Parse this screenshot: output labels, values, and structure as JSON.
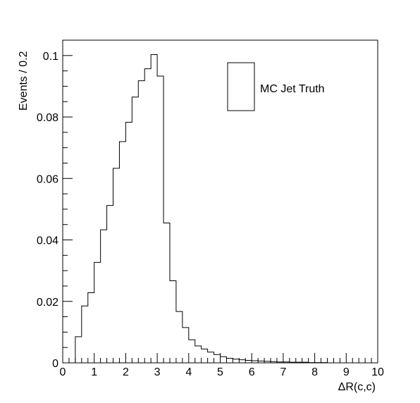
{
  "chart_data": {
    "type": "histogram",
    "title": "",
    "xlabel": "ΔR(c,c)",
    "ylabel": "Events / 0.2",
    "xlim": [
      0,
      10
    ],
    "ylim": [
      0,
      0.105
    ],
    "x_ticks": [
      "0",
      "1",
      "2",
      "3",
      "4",
      "5",
      "6",
      "7",
      "8",
      "9",
      "10"
    ],
    "y_ticks": [
      "0",
      "0.02",
      "0.04",
      "0.06",
      "0.08",
      "0.1"
    ],
    "bin_width": 0.2,
    "bin_edges_start": 0,
    "legend": {
      "position": "top-right",
      "entries": [
        "MC Jet Truth"
      ]
    },
    "series": [
      {
        "name": "MC Jet Truth",
        "values": [
          0,
          0,
          0.0085,
          0.0185,
          0.0228,
          0.0327,
          0.0433,
          0.0512,
          0.0633,
          0.072,
          0.0783,
          0.0865,
          0.0918,
          0.0957,
          0.1003,
          0.0933,
          0.0455,
          0.0267,
          0.0167,
          0.0115,
          0.0075,
          0.0055,
          0.0045,
          0.0035,
          0.0027,
          0.002,
          0.0015,
          0.0012,
          0.001,
          0.0008,
          0.0007,
          0.0006,
          0.0005,
          0.0004,
          0.0003,
          0.0003,
          0.0002,
          0.0002,
          0.0002,
          0.0001,
          0.0001,
          0.0001,
          0,
          0,
          0,
          0,
          0,
          0,
          0,
          0
        ]
      }
    ]
  }
}
